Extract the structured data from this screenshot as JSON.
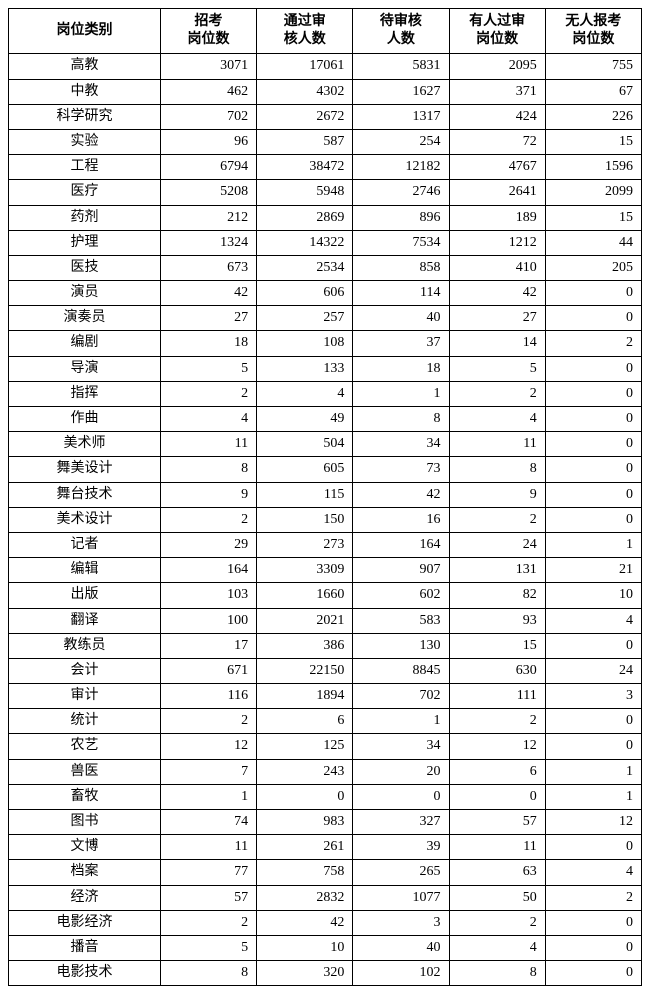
{
  "table": {
    "columns": [
      "岗位类别",
      "招考\n岗位数",
      "通过审\n核人数",
      "待审核\n人数",
      "有人过审\n岗位数",
      "无人报考\n岗位数"
    ],
    "rows": [
      [
        "高教",
        3071,
        17061,
        5831,
        2095,
        755
      ],
      [
        "中教",
        462,
        4302,
        1627,
        371,
        67
      ],
      [
        "科学研究",
        702,
        2672,
        1317,
        424,
        226
      ],
      [
        "实验",
        96,
        587,
        254,
        72,
        15
      ],
      [
        "工程",
        6794,
        38472,
        12182,
        4767,
        1596
      ],
      [
        "医疗",
        5208,
        5948,
        2746,
        2641,
        2099
      ],
      [
        "药剂",
        212,
        2869,
        896,
        189,
        15
      ],
      [
        "护理",
        1324,
        14322,
        7534,
        1212,
        44
      ],
      [
        "医技",
        673,
        2534,
        858,
        410,
        205
      ],
      [
        "演员",
        42,
        606,
        114,
        42,
        0
      ],
      [
        "演奏员",
        27,
        257,
        40,
        27,
        0
      ],
      [
        "编剧",
        18,
        108,
        37,
        14,
        2
      ],
      [
        "导演",
        5,
        133,
        18,
        5,
        0
      ],
      [
        "指挥",
        2,
        4,
        1,
        2,
        0
      ],
      [
        "作曲",
        4,
        49,
        8,
        4,
        0
      ],
      [
        "美术师",
        11,
        504,
        34,
        11,
        0
      ],
      [
        "舞美设计",
        8,
        605,
        73,
        8,
        0
      ],
      [
        "舞台技术",
        9,
        115,
        42,
        9,
        0
      ],
      [
        "美术设计",
        2,
        150,
        16,
        2,
        0
      ],
      [
        "记者",
        29,
        273,
        164,
        24,
        1
      ],
      [
        "编辑",
        164,
        3309,
        907,
        131,
        21
      ],
      [
        "出版",
        103,
        1660,
        602,
        82,
        10
      ],
      [
        "翻译",
        100,
        2021,
        583,
        93,
        4
      ],
      [
        "教练员",
        17,
        386,
        130,
        15,
        0
      ],
      [
        "会计",
        671,
        22150,
        8845,
        630,
        24
      ],
      [
        "审计",
        116,
        1894,
        702,
        111,
        3
      ],
      [
        "统计",
        2,
        6,
        1,
        2,
        0
      ],
      [
        "农艺",
        12,
        125,
        34,
        12,
        0
      ],
      [
        "兽医",
        7,
        243,
        20,
        6,
        1
      ],
      [
        "畜牧",
        1,
        0,
        0,
        0,
        1
      ],
      [
        "图书",
        74,
        983,
        327,
        57,
        12
      ],
      [
        "文博",
        11,
        261,
        39,
        11,
        0
      ],
      [
        "档案",
        77,
        758,
        265,
        63,
        4
      ],
      [
        "经济",
        57,
        2832,
        1077,
        50,
        2
      ],
      [
        "电影经济",
        2,
        42,
        3,
        2,
        0
      ],
      [
        "播音",
        5,
        10,
        40,
        4,
        0
      ],
      [
        "电影技术",
        8,
        320,
        102,
        8,
        0
      ]
    ],
    "styling": {
      "border_color": "#000000",
      "background_color": "#ffffff",
      "header_font_weight": "bold",
      "font_size": 14,
      "category_align": "center",
      "number_align": "right",
      "col_widths_pct": [
        24,
        15.2,
        15.2,
        15.2,
        15.2,
        15.2
      ]
    }
  }
}
